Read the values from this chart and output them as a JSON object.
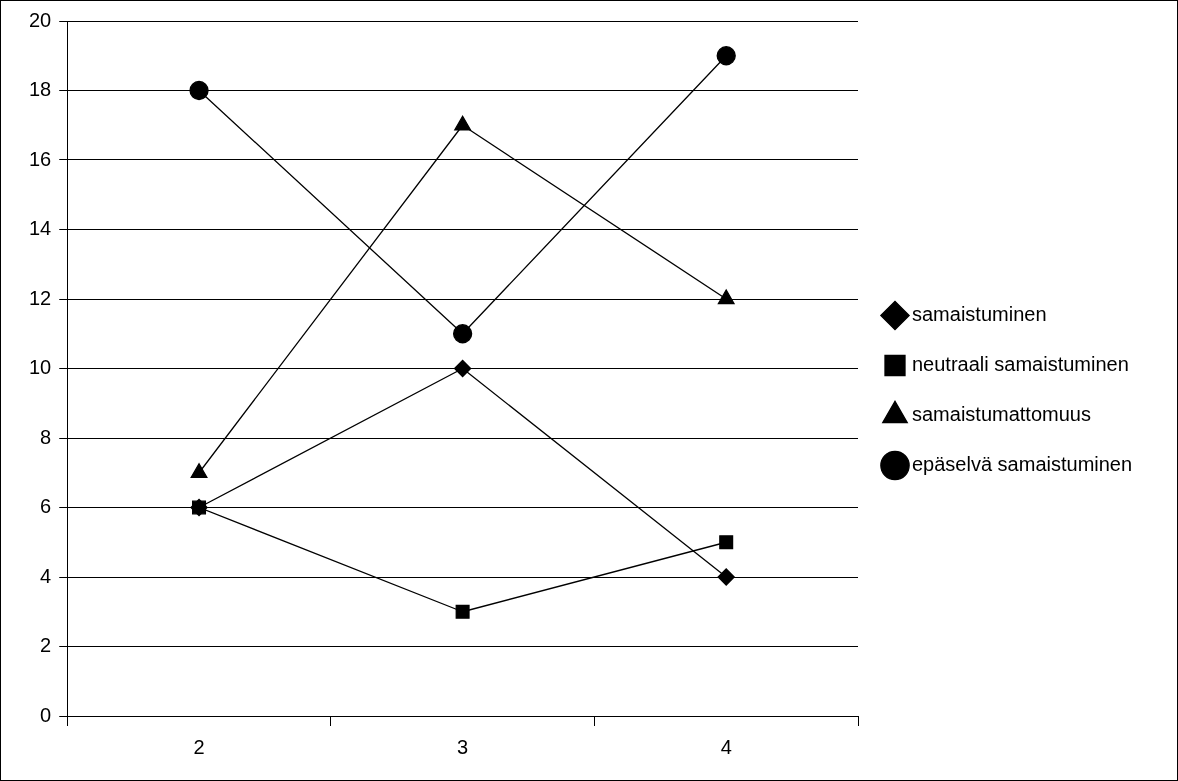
{
  "chart_data": {
    "type": "line",
    "categories": [
      "2",
      "3",
      "4"
    ],
    "series": [
      {
        "name": "samaistuminen",
        "color": "#000000",
        "marker": "diamond",
        "values": [
          6,
          10,
          4
        ]
      },
      {
        "name": "neutraali samaistuminen",
        "color": "#000000",
        "marker": "square",
        "values": [
          6,
          3,
          5
        ]
      },
      {
        "name": "samaistumattomuus",
        "color": "#000000",
        "marker": "triangle",
        "values": [
          7,
          17,
          12
        ]
      },
      {
        "name": "epäselvä samaistuminen",
        "color": "#000000",
        "marker": "circle",
        "values": [
          18,
          11,
          19
        ]
      }
    ],
    "ylim": [
      0,
      20
    ],
    "yticks": [
      0,
      2,
      4,
      6,
      8,
      10,
      12,
      14,
      16,
      18,
      20
    ],
    "grid": "y",
    "legend": "right",
    "line_style": "solid"
  }
}
